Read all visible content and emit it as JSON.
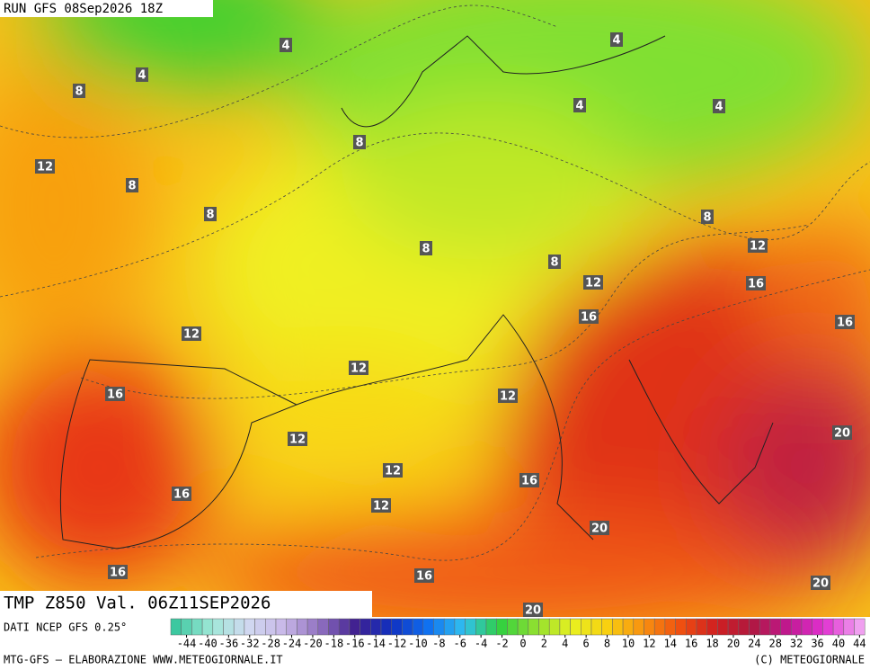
{
  "header": {
    "run": "RUN GFS 08Sep2026 18Z"
  },
  "map": {
    "contour_labels": [
      4,
      4,
      4,
      4,
      4,
      8,
      8,
      8,
      8,
      8,
      8,
      8,
      12,
      12,
      12,
      12,
      12,
      12,
      12,
      12,
      12,
      16,
      16,
      16,
      16,
      16,
      16,
      16,
      16,
      20,
      20,
      20,
      20
    ]
  },
  "footer": {
    "field": "TMP Z850 Val. 06Z11SEP2026",
    "source": "DATI NCEP GFS 0.25°",
    "credit": "MTG-GFS — ELABORAZIONE WWW.METEOGIORNALE.IT",
    "copyright": "(C) METEOGIORNALE"
  },
  "colorbar": {
    "labels": [
      -44,
      -40,
      -36,
      -32,
      -28,
      -24,
      -20,
      -18,
      -16,
      -14,
      -12,
      -10,
      -8,
      -6,
      -4,
      -2,
      0,
      2,
      4,
      6,
      8,
      10,
      12,
      14,
      16,
      18,
      20,
      24,
      28,
      32,
      36,
      40,
      44
    ],
    "colors": [
      "#3cc8a0",
      "#a0e8d8",
      "#d0d8f0",
      "#c8b8e8",
      "#9070c0",
      "#402090",
      "#1030c0",
      "#1070f0",
      "#30c0f0",
      "#30d040",
      "#90e030",
      "#e8f020",
      "#f8d010",
      "#f89010",
      "#f05010",
      "#d02020",
      "#b01840",
      "#c01890",
      "#e030d0",
      "#f0a0f0"
    ]
  }
}
